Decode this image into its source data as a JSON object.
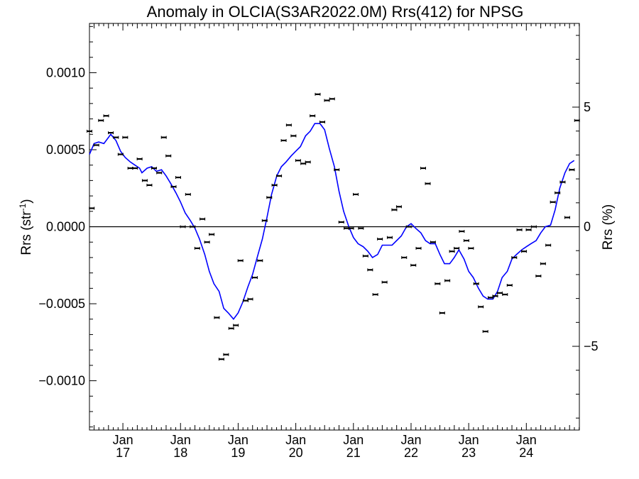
{
  "chart_data": {
    "type": "scatter",
    "title": "Anomaly in OLCIA(S3AR2022.0M) Rrs(412) for NPSG",
    "ylabel_left": "Rrs (str",
    "ylabel_left_sup": "-1",
    "ylabel_left_close": ")",
    "ylabel_right": "Rrs (%)",
    "xlim": [
      2016.42,
      2024.92
    ],
    "ylim": [
      -0.00132,
      0.00132
    ],
    "ylim_right": [
      -8.5,
      8.5
    ],
    "grid": false,
    "zero_line": 0,
    "left_ticks": [
      {
        "value": 0.001,
        "label": "0.0010"
      },
      {
        "value": 0.0005,
        "label": "0.0005"
      },
      {
        "value": 0,
        "label": "0.0000"
      },
      {
        "value": -0.0005,
        "label": "−0.0005"
      },
      {
        "value": -0.001,
        "label": "−0.0010"
      }
    ],
    "right_ticks": [
      {
        "value": 5,
        "label": "5"
      },
      {
        "value": 0,
        "label": "0"
      },
      {
        "value": -5,
        "label": "−5"
      }
    ],
    "x_ticks": [
      {
        "value": 2017.0,
        "month": "Jan",
        "year": "17"
      },
      {
        "value": 2018.0,
        "month": "Jan",
        "year": "18"
      },
      {
        "value": 2019.0,
        "month": "Jan",
        "year": "19"
      },
      {
        "value": 2020.0,
        "month": "Jan",
        "year": "20"
      },
      {
        "value": 2021.0,
        "month": "Jan",
        "year": "21"
      },
      {
        "value": 2022.0,
        "month": "Jan",
        "year": "22"
      },
      {
        "value": 2023.0,
        "month": "Jan",
        "year": "23"
      },
      {
        "value": 2024.0,
        "month": "Jan",
        "year": "24"
      }
    ],
    "series": [
      {
        "kind": "monthly-anomaly-points",
        "color": "#000000",
        "points": [
          [
            2016.42,
            0.00062
          ],
          [
            2016.46,
            0.00012
          ],
          [
            2016.54,
            0.00053
          ],
          [
            2016.62,
            0.00069
          ],
          [
            2016.71,
            0.00072
          ],
          [
            2016.79,
            0.00061
          ],
          [
            2016.88,
            0.00058
          ],
          [
            2016.96,
            0.00047
          ],
          [
            2017.04,
            0.00058
          ],
          [
            2017.13,
            0.00038
          ],
          [
            2017.21,
            0.00038
          ],
          [
            2017.29,
            0.00044
          ],
          [
            2017.38,
            0.0003
          ],
          [
            2017.46,
            0.00027
          ],
          [
            2017.54,
            0.00038
          ],
          [
            2017.63,
            0.00035
          ],
          [
            2017.71,
            0.00058
          ],
          [
            2017.79,
            0.00046
          ],
          [
            2017.88,
            0.00026
          ],
          [
            2017.96,
            0.00032
          ],
          [
            2018.04,
            0.0
          ],
          [
            2018.13,
            0.00021
          ],
          [
            2018.21,
            0.0
          ],
          [
            2018.29,
            -0.00014
          ],
          [
            2018.38,
            5e-05
          ],
          [
            2018.46,
            -0.0001
          ],
          [
            2018.54,
            -5e-05
          ],
          [
            2018.63,
            -0.00059
          ],
          [
            2018.71,
            -0.00086
          ],
          [
            2018.79,
            -0.00083
          ],
          [
            2018.88,
            -0.00066
          ],
          [
            2018.96,
            -0.00064
          ],
          [
            2019.04,
            -0.00022
          ],
          [
            2019.13,
            -0.00048
          ],
          [
            2019.21,
            -0.00047
          ],
          [
            2019.29,
            -0.00033
          ],
          [
            2019.38,
            -0.00022
          ],
          [
            2019.46,
            4e-05
          ],
          [
            2019.54,
            0.00019
          ],
          [
            2019.63,
            0.00027
          ],
          [
            2019.71,
            0.00033
          ],
          [
            2019.79,
            0.00056
          ],
          [
            2019.88,
            0.00066
          ],
          [
            2019.96,
            0.00059
          ],
          [
            2020.04,
            0.00043
          ],
          [
            2020.13,
            0.00041
          ],
          [
            2020.21,
            0.00042
          ],
          [
            2020.29,
            0.00072
          ],
          [
            2020.38,
            0.00086
          ],
          [
            2020.46,
            0.00068
          ],
          [
            2020.54,
            0.00082
          ],
          [
            2020.63,
            0.00083
          ],
          [
            2020.71,
            0.00037
          ],
          [
            2020.79,
            3e-05
          ],
          [
            2020.88,
            -1e-05
          ],
          [
            2020.96,
            -1e-05
          ],
          [
            2021.04,
            0.00021
          ],
          [
            2021.13,
            -1e-05
          ],
          [
            2021.21,
            -0.00019
          ],
          [
            2021.29,
            -0.00028
          ],
          [
            2021.38,
            -0.00044
          ],
          [
            2021.46,
            -8e-05
          ],
          [
            2021.54,
            -0.00036
          ],
          [
            2021.63,
            -7e-05
          ],
          [
            2021.71,
            0.00011
          ],
          [
            2021.79,
            0.00013
          ],
          [
            2021.88,
            -0.0002
          ],
          [
            2021.96,
            0.0
          ],
          [
            2022.04,
            -0.00025
          ],
          [
            2022.13,
            -0.00014
          ],
          [
            2022.21,
            0.00038
          ],
          [
            2022.29,
            0.00028
          ],
          [
            2022.38,
            -0.0001
          ],
          [
            2022.46,
            -0.00037
          ],
          [
            2022.54,
            -0.00056
          ],
          [
            2022.63,
            -0.00035
          ],
          [
            2022.71,
            -0.00016
          ],
          [
            2022.79,
            -0.00014
          ],
          [
            2022.88,
            -3e-05
          ],
          [
            2022.96,
            -9e-05
          ],
          [
            2023.04,
            -0.00014
          ],
          [
            2023.13,
            -0.00037
          ],
          [
            2023.21,
            -0.00052
          ],
          [
            2023.29,
            -0.00068
          ],
          [
            2023.38,
            -0.00046
          ],
          [
            2023.46,
            -0.00045
          ],
          [
            2023.54,
            -0.00043
          ],
          [
            2023.63,
            -0.00044
          ],
          [
            2023.71,
            -0.00038
          ],
          [
            2023.79,
            -0.0002
          ],
          [
            2023.88,
            -2e-05
          ],
          [
            2023.96,
            -0.00016
          ],
          [
            2024.04,
            -2e-05
          ],
          [
            2024.13,
            0.0
          ],
          [
            2024.21,
            -0.00032
          ],
          [
            2024.29,
            -0.00024
          ],
          [
            2024.38,
            -0.00012
          ],
          [
            2024.46,
            0.00016
          ],
          [
            2024.54,
            0.00022
          ],
          [
            2024.63,
            0.00029
          ],
          [
            2024.71,
            6e-05
          ],
          [
            2024.79,
            0.00037
          ],
          [
            2024.88,
            0.00069
          ]
        ]
      },
      {
        "kind": "smoothed-line",
        "color": "#0000ff",
        "points": [
          [
            2016.42,
            0.00047
          ],
          [
            2016.5,
            0.00054
          ],
          [
            2016.58,
            0.00055
          ],
          [
            2016.67,
            0.00054
          ],
          [
            2016.75,
            0.00058
          ],
          [
            2016.79,
            0.0006
          ],
          [
            2016.88,
            0.00056
          ],
          [
            2016.96,
            0.00049
          ],
          [
            2017.04,
            0.00045
          ],
          [
            2017.13,
            0.00042
          ],
          [
            2017.21,
            0.0004
          ],
          [
            2017.29,
            0.00038
          ],
          [
            2017.33,
            0.00035
          ],
          [
            2017.42,
            0.00038
          ],
          [
            2017.5,
            0.00039
          ],
          [
            2017.58,
            0.00036
          ],
          [
            2017.67,
            0.00037
          ],
          [
            2017.75,
            0.00033
          ],
          [
            2017.83,
            0.00028
          ],
          [
            2017.92,
            0.00022
          ],
          [
            2018.0,
            0.00016
          ],
          [
            2018.08,
            9e-05
          ],
          [
            2018.17,
            4e-05
          ],
          [
            2018.25,
            -1e-05
          ],
          [
            2018.33,
            -8e-05
          ],
          [
            2018.42,
            -0.00018
          ],
          [
            2018.5,
            -0.00029
          ],
          [
            2018.58,
            -0.00037
          ],
          [
            2018.67,
            -0.00042
          ],
          [
            2018.75,
            -0.00053
          ],
          [
            2018.83,
            -0.00056
          ],
          [
            2018.92,
            -0.0006
          ],
          [
            2019.0,
            -0.00056
          ],
          [
            2019.08,
            -0.00049
          ],
          [
            2019.17,
            -0.00039
          ],
          [
            2019.25,
            -0.00031
          ],
          [
            2019.33,
            -0.0002
          ],
          [
            2019.42,
            -8e-05
          ],
          [
            2019.5,
            6e-05
          ],
          [
            2019.58,
            0.00021
          ],
          [
            2019.67,
            0.00033
          ],
          [
            2019.75,
            0.00039
          ],
          [
            2019.83,
            0.00042
          ],
          [
            2019.92,
            0.00046
          ],
          [
            2020.0,
            0.00049
          ],
          [
            2020.08,
            0.00052
          ],
          [
            2020.17,
            0.00059
          ],
          [
            2020.25,
            0.00062
          ],
          [
            2020.33,
            0.00067
          ],
          [
            2020.42,
            0.00067
          ],
          [
            2020.5,
            0.00063
          ],
          [
            2020.58,
            0.00051
          ],
          [
            2020.67,
            0.00039
          ],
          [
            2020.75,
            0.00023
          ],
          [
            2020.83,
            0.0001
          ],
          [
            2020.92,
            0.0
          ],
          [
            2021.0,
            -7e-05
          ],
          [
            2021.08,
            -0.00011
          ],
          [
            2021.17,
            -0.00013
          ],
          [
            2021.25,
            -0.00016
          ],
          [
            2021.33,
            -0.0002
          ],
          [
            2021.42,
            -0.00018
          ],
          [
            2021.5,
            -0.00012
          ],
          [
            2021.58,
            -0.00012
          ],
          [
            2021.67,
            -0.00012
          ],
          [
            2021.75,
            -9e-05
          ],
          [
            2021.83,
            -6e-05
          ],
          [
            2021.92,
            0.0
          ],
          [
            2022.0,
            2e-05
          ],
          [
            2022.08,
            -1e-05
          ],
          [
            2022.17,
            -4e-05
          ],
          [
            2022.25,
            -9e-05
          ],
          [
            2022.33,
            -0.00011
          ],
          [
            2022.42,
            -0.00011
          ],
          [
            2022.5,
            -0.00018
          ],
          [
            2022.58,
            -0.00024
          ],
          [
            2022.67,
            -0.00024
          ],
          [
            2022.75,
            -0.0002
          ],
          [
            2022.83,
            -0.00015
          ],
          [
            2022.92,
            -0.00021
          ],
          [
            2023.0,
            -0.00029
          ],
          [
            2023.08,
            -0.00033
          ],
          [
            2023.17,
            -0.0004
          ],
          [
            2023.25,
            -0.00045
          ],
          [
            2023.33,
            -0.00047
          ],
          [
            2023.42,
            -0.00047
          ],
          [
            2023.5,
            -0.00042
          ],
          [
            2023.58,
            -0.00033
          ],
          [
            2023.67,
            -0.00029
          ],
          [
            2023.75,
            -0.00021
          ],
          [
            2023.83,
            -0.00018
          ],
          [
            2023.92,
            -0.00015
          ],
          [
            2024.0,
            -0.00013
          ],
          [
            2024.08,
            -0.00011
          ],
          [
            2024.17,
            -9e-05
          ],
          [
            2024.25,
            -4e-05
          ],
          [
            2024.33,
            0.0
          ],
          [
            2024.42,
            1e-05
          ],
          [
            2024.5,
            0.00011
          ],
          [
            2024.58,
            0.00025
          ],
          [
            2024.67,
            0.00035
          ],
          [
            2024.75,
            0.00041
          ],
          [
            2024.83,
            0.00043
          ]
        ]
      }
    ]
  }
}
